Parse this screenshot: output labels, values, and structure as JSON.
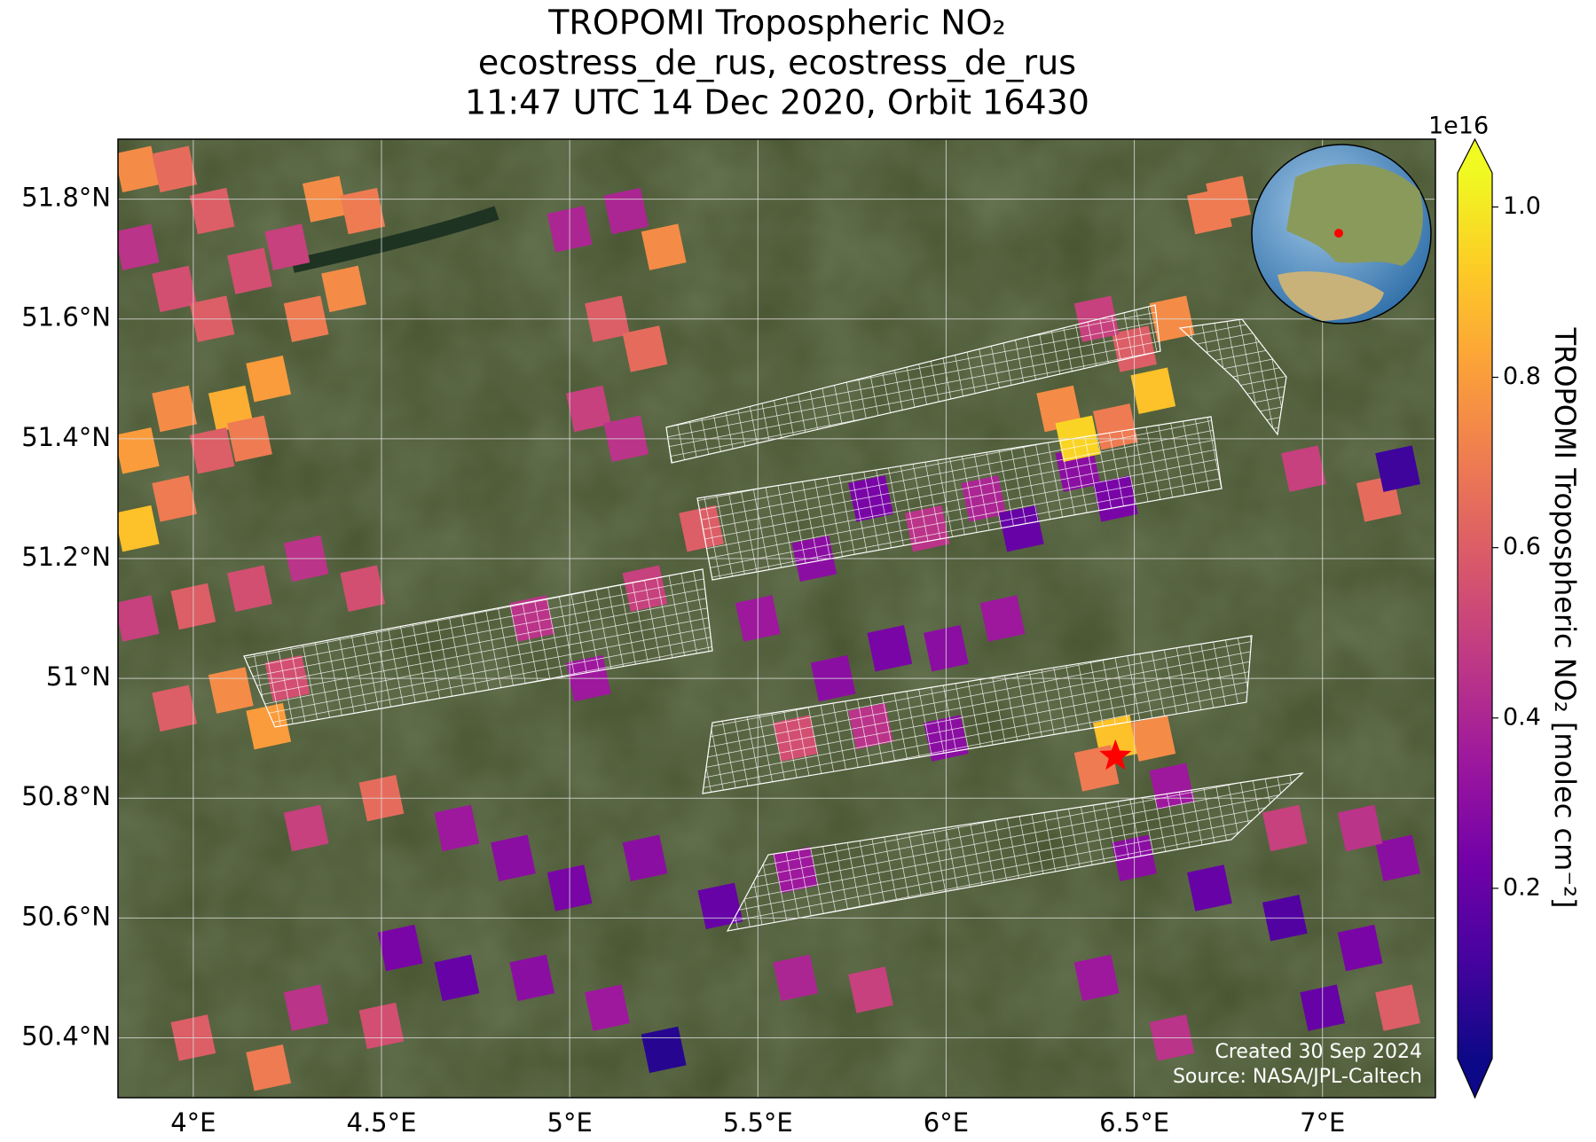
{
  "chart_data": {
    "type": "pixel_map",
    "title": [
      "TROPOMI Tropospheric NO₂",
      "ecostress_de_rus, ecostress_de_rus",
      "11:47 UTC 14 Dec 2020, Orbit 16430"
    ],
    "xlim": [
      3.8,
      7.3
    ],
    "ylim": [
      50.3,
      51.9
    ],
    "xticks": [
      {
        "value": 4,
        "label": "4°E"
      },
      {
        "value": 4.5,
        "label": "4.5°E"
      },
      {
        "value": 5,
        "label": "5°E"
      },
      {
        "value": 5.5,
        "label": "5.5°E"
      },
      {
        "value": 6,
        "label": "6°E"
      },
      {
        "value": 6.5,
        "label": "6.5°E"
      },
      {
        "value": 7,
        "label": "7°E"
      }
    ],
    "yticks": [
      {
        "value": 50.4,
        "label": "50.4°N"
      },
      {
        "value": 50.6,
        "label": "50.6°N"
      },
      {
        "value": 50.8,
        "label": "50.8°N"
      },
      {
        "value": 51,
        "label": "51°N"
      },
      {
        "value": 51.2,
        "label": "51.2°N"
      },
      {
        "value": 51.4,
        "label": "51.4°N"
      },
      {
        "value": 51.6,
        "label": "51.6°N"
      },
      {
        "value": 51.8,
        "label": "51.8°N"
      }
    ],
    "grid": true,
    "colorbar": {
      "label": "TROPOMI Tropospheric NO₂ [molec cm⁻²]",
      "offset_label": "1e16",
      "colormap": "plasma",
      "clim": [
        0,
        1.04
      ],
      "ticks": [
        0.2,
        0.4,
        0.6,
        0.8,
        {
          "value": 1,
          "label": "1.0"
        }
      ]
    },
    "target": {
      "lon": 6.45,
      "lat": 50.87,
      "color": "#ff0000"
    },
    "annotations": [
      "Created 30 Sep 2024",
      "Source: NASA/JPL-Caltech"
    ],
    "pixels": [
      {
        "lon": 3.85,
        "lat": 51.85,
        "value": 0.75
      },
      {
        "lon": 3.95,
        "lat": 51.85,
        "value": 0.65
      },
      {
        "lon": 4.05,
        "lat": 51.78,
        "value": 0.6
      },
      {
        "lon": 3.85,
        "lat": 51.72,
        "value": 0.45
      },
      {
        "lon": 3.95,
        "lat": 51.65,
        "value": 0.55
      },
      {
        "lon": 4.05,
        "lat": 51.6,
        "value": 0.6
      },
      {
        "lon": 4.15,
        "lat": 51.68,
        "value": 0.55
      },
      {
        "lon": 4.25,
        "lat": 51.72,
        "value": 0.5
      },
      {
        "lon": 4.35,
        "lat": 51.8,
        "value": 0.75
      },
      {
        "lon": 4.45,
        "lat": 51.78,
        "value": 0.7
      },
      {
        "lon": 4.4,
        "lat": 51.65,
        "value": 0.75
      },
      {
        "lon": 4.3,
        "lat": 51.6,
        "value": 0.7
      },
      {
        "lon": 4.2,
        "lat": 51.5,
        "value": 0.8
      },
      {
        "lon": 4.1,
        "lat": 51.45,
        "value": 0.85
      },
      {
        "lon": 3.95,
        "lat": 51.45,
        "value": 0.75
      },
      {
        "lon": 3.85,
        "lat": 51.38,
        "value": 0.8
      },
      {
        "lon": 3.85,
        "lat": 51.25,
        "value": 0.9
      },
      {
        "lon": 3.95,
        "lat": 51.3,
        "value": 0.7
      },
      {
        "lon": 4.05,
        "lat": 51.38,
        "value": 0.6
      },
      {
        "lon": 4.15,
        "lat": 51.4,
        "value": 0.7
      },
      {
        "lon": 5.0,
        "lat": 51.75,
        "value": 0.4
      },
      {
        "lon": 5.15,
        "lat": 51.78,
        "value": 0.4
      },
      {
        "lon": 5.25,
        "lat": 51.72,
        "value": 0.75
      },
      {
        "lon": 5.1,
        "lat": 51.6,
        "value": 0.6
      },
      {
        "lon": 5.2,
        "lat": 51.55,
        "value": 0.65
      },
      {
        "lon": 5.05,
        "lat": 51.45,
        "value": 0.5
      },
      {
        "lon": 5.15,
        "lat": 51.4,
        "value": 0.45
      },
      {
        "lon": 3.85,
        "lat": 51.1,
        "value": 0.5
      },
      {
        "lon": 4.0,
        "lat": 51.12,
        "value": 0.6
      },
      {
        "lon": 4.15,
        "lat": 51.15,
        "value": 0.55
      },
      {
        "lon": 4.3,
        "lat": 51.2,
        "value": 0.45
      },
      {
        "lon": 4.45,
        "lat": 51.15,
        "value": 0.55
      },
      {
        "lon": 4.1,
        "lat": 50.98,
        "value": 0.75
      },
      {
        "lon": 3.95,
        "lat": 50.95,
        "value": 0.6
      },
      {
        "lon": 4.25,
        "lat": 51.0,
        "value": 0.55
      },
      {
        "lon": 4.2,
        "lat": 50.92,
        "value": 0.8
      },
      {
        "lon": 4.9,
        "lat": 51.1,
        "value": 0.45
      },
      {
        "lon": 5.05,
        "lat": 51.0,
        "value": 0.35
      },
      {
        "lon": 5.2,
        "lat": 51.15,
        "value": 0.5
      },
      {
        "lon": 5.35,
        "lat": 51.25,
        "value": 0.6
      },
      {
        "lon": 5.5,
        "lat": 51.1,
        "value": 0.35
      },
      {
        "lon": 5.65,
        "lat": 51.2,
        "value": 0.3
      },
      {
        "lon": 5.8,
        "lat": 51.3,
        "value": 0.25
      },
      {
        "lon": 5.95,
        "lat": 51.25,
        "value": 0.45
      },
      {
        "lon": 6.1,
        "lat": 51.3,
        "value": 0.4
      },
      {
        "lon": 6.2,
        "lat": 51.25,
        "value": 0.2
      },
      {
        "lon": 6.35,
        "lat": 51.35,
        "value": 0.3
      },
      {
        "lon": 6.45,
        "lat": 51.3,
        "value": 0.25
      },
      {
        "lon": 5.7,
        "lat": 51.0,
        "value": 0.3
      },
      {
        "lon": 5.85,
        "lat": 51.05,
        "value": 0.25
      },
      {
        "lon": 6.0,
        "lat": 51.05,
        "value": 0.3
      },
      {
        "lon": 6.15,
        "lat": 51.1,
        "value": 0.35
      },
      {
        "lon": 5.6,
        "lat": 50.9,
        "value": 0.55
      },
      {
        "lon": 5.8,
        "lat": 50.92,
        "value": 0.45
      },
      {
        "lon": 6.0,
        "lat": 50.9,
        "value": 0.3
      },
      {
        "lon": 6.3,
        "lat": 51.45,
        "value": 0.75
      },
      {
        "lon": 6.35,
        "lat": 51.4,
        "value": 0.95
      },
      {
        "lon": 6.45,
        "lat": 51.42,
        "value": 0.7
      },
      {
        "lon": 6.55,
        "lat": 51.48,
        "value": 0.9
      },
      {
        "lon": 6.5,
        "lat": 51.55,
        "value": 0.6
      },
      {
        "lon": 6.4,
        "lat": 51.6,
        "value": 0.5
      },
      {
        "lon": 6.6,
        "lat": 51.6,
        "value": 0.75
      },
      {
        "lon": 6.7,
        "lat": 51.78,
        "value": 0.7
      },
      {
        "lon": 6.45,
        "lat": 50.9,
        "value": 0.9
      },
      {
        "lon": 6.55,
        "lat": 50.9,
        "value": 0.75
      },
      {
        "lon": 6.4,
        "lat": 50.85,
        "value": 0.7
      },
      {
        "lon": 6.6,
        "lat": 50.82,
        "value": 0.35
      },
      {
        "lon": 4.3,
        "lat": 50.75,
        "value": 0.5
      },
      {
        "lon": 4.5,
        "lat": 50.8,
        "value": 0.65
      },
      {
        "lon": 4.7,
        "lat": 50.75,
        "value": 0.35
      },
      {
        "lon": 4.85,
        "lat": 50.7,
        "value": 0.3
      },
      {
        "lon": 5.0,
        "lat": 50.65,
        "value": 0.25
      },
      {
        "lon": 5.2,
        "lat": 50.7,
        "value": 0.3
      },
      {
        "lon": 5.4,
        "lat": 50.62,
        "value": 0.2
      },
      {
        "lon": 5.6,
        "lat": 50.68,
        "value": 0.35
      },
      {
        "lon": 4.55,
        "lat": 50.55,
        "value": 0.25
      },
      {
        "lon": 4.7,
        "lat": 50.5,
        "value": 0.2
      },
      {
        "lon": 4.9,
        "lat": 50.5,
        "value": 0.3
      },
      {
        "lon": 5.1,
        "lat": 50.45,
        "value": 0.35
      },
      {
        "lon": 5.25,
        "lat": 50.38,
        "value": 0.05
      },
      {
        "lon": 4.3,
        "lat": 50.45,
        "value": 0.45
      },
      {
        "lon": 4.5,
        "lat": 50.42,
        "value": 0.55
      },
      {
        "lon": 4.0,
        "lat": 50.4,
        "value": 0.6
      },
      {
        "lon": 4.2,
        "lat": 50.35,
        "value": 0.7
      },
      {
        "lon": 5.6,
        "lat": 50.5,
        "value": 0.4
      },
      {
        "lon": 5.8,
        "lat": 50.48,
        "value": 0.5
      },
      {
        "lon": 6.5,
        "lat": 50.7,
        "value": 0.3
      },
      {
        "lon": 6.7,
        "lat": 50.65,
        "value": 0.2
      },
      {
        "lon": 6.9,
        "lat": 50.6,
        "value": 0.15
      },
      {
        "lon": 7.1,
        "lat": 50.55,
        "value": 0.25
      },
      {
        "lon": 7.2,
        "lat": 50.7,
        "value": 0.3
      },
      {
        "lon": 6.9,
        "lat": 50.75,
        "value": 0.5
      },
      {
        "lon": 7.1,
        "lat": 50.75,
        "value": 0.45
      },
      {
        "lon": 6.4,
        "lat": 50.5,
        "value": 0.35
      },
      {
        "lon": 6.6,
        "lat": 50.4,
        "value": 0.45
      },
      {
        "lon": 7.0,
        "lat": 50.45,
        "value": 0.2
      },
      {
        "lon": 7.2,
        "lat": 50.45,
        "value": 0.6
      },
      {
        "lon": 7.15,
        "lat": 51.3,
        "value": 0.65
      },
      {
        "lon": 7.2,
        "lat": 51.35,
        "value": 0.1
      },
      {
        "lon": 6.95,
        "lat": 51.35,
        "value": 0.5
      },
      {
        "lon": 6.75,
        "lat": 51.8,
        "value": 0.7
      }
    ]
  }
}
